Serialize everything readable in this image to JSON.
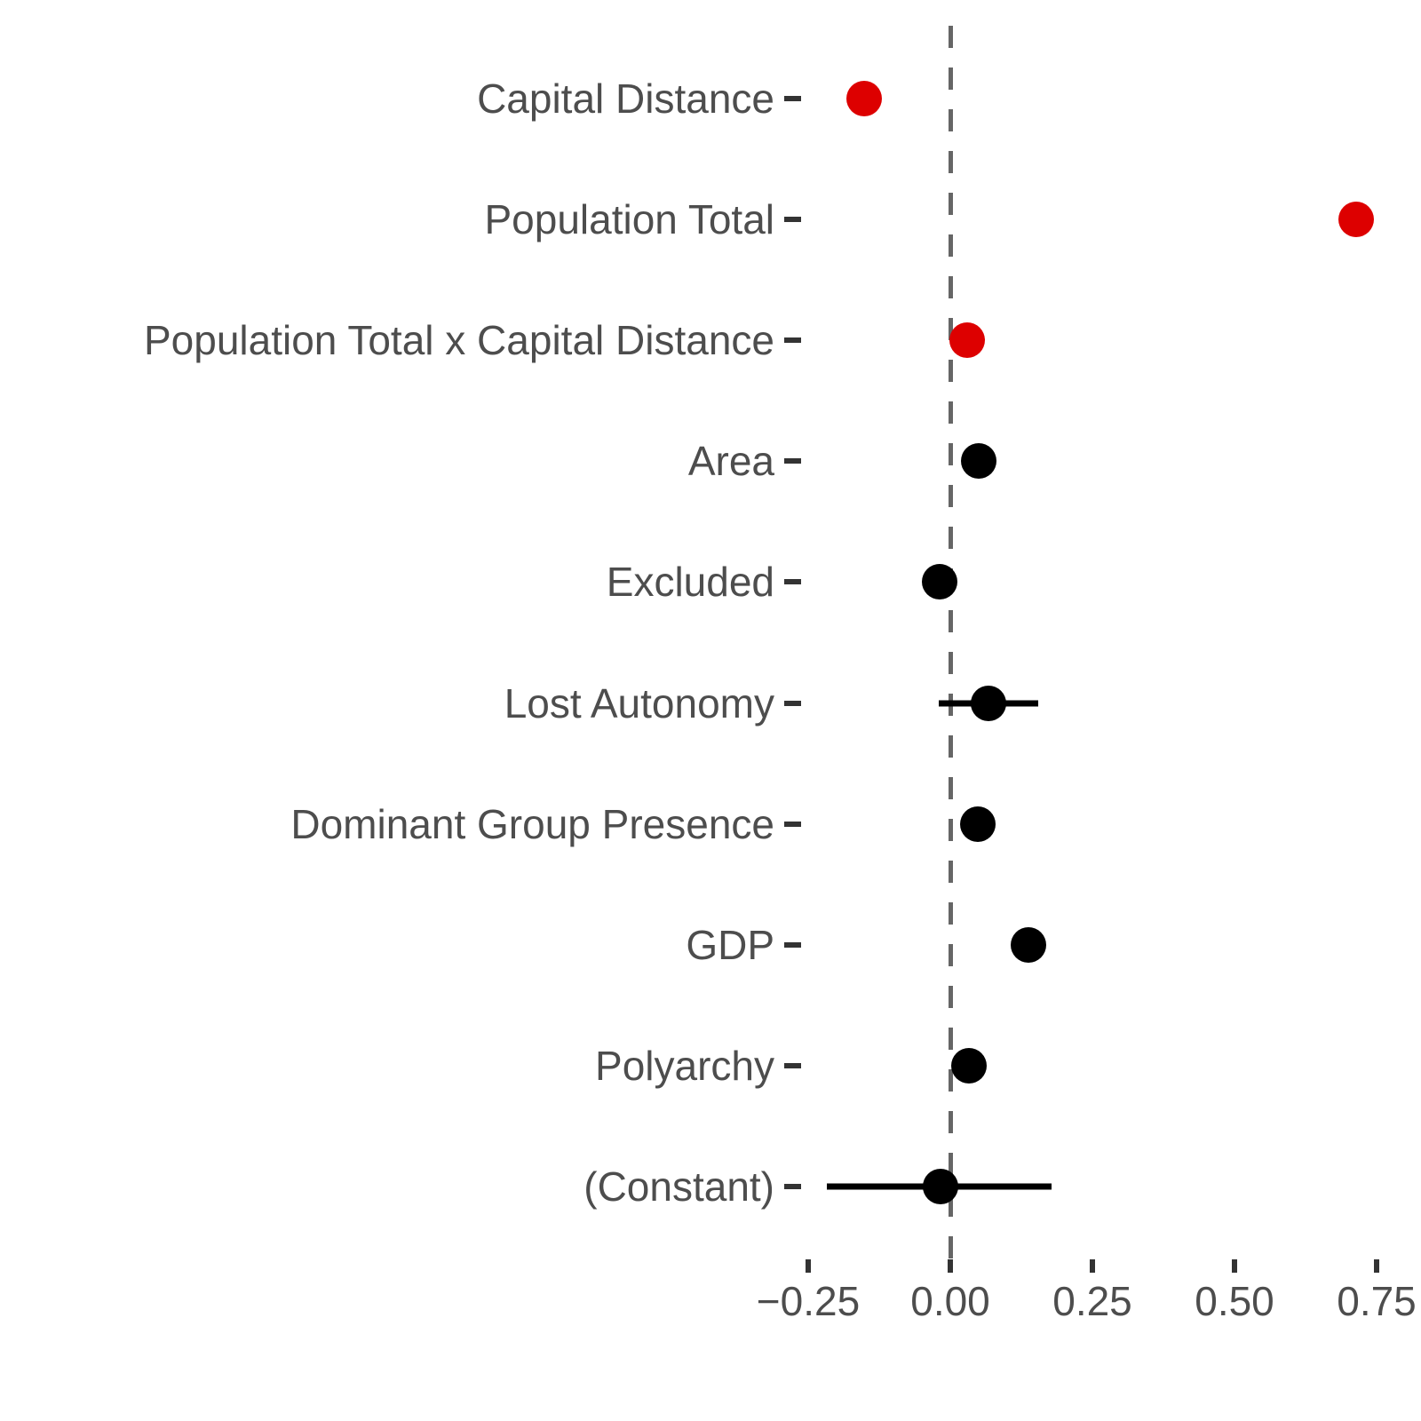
{
  "chart_data": {
    "type": "scatter",
    "subtype": "coefficient_dot_whisker_plot",
    "title": "",
    "xlabel": "",
    "ylabel": "",
    "grid": false,
    "legend": "none",
    "zero_reference_line": 0,
    "xlim": [
      -0.28,
      0.83
    ],
    "x_ticks": [
      -0.25,
      0.0,
      0.25,
      0.5,
      0.75
    ],
    "x_tick_labels": [
      "−0.25",
      "0.00",
      "0.25",
      "0.50",
      "0.75"
    ],
    "categories": [
      "Capital Distance",
      "Population Total",
      "Population Total x Capital Distance",
      "Area",
      "Excluded",
      "Lost Autonomy",
      "Dominant Group Presence",
      "GDP",
      "Polyarchy",
      "(Constant)"
    ],
    "points": [
      {
        "label": "Capital Distance",
        "estimate": -0.152,
        "ci_low": null,
        "ci_high": null,
        "significant": true,
        "color": "#dd0000"
      },
      {
        "label": "Population Total",
        "estimate": 0.714,
        "ci_low": null,
        "ci_high": null,
        "significant": true,
        "color": "#dd0000"
      },
      {
        "label": "Population Total x Capital Distance",
        "estimate": 0.03,
        "ci_low": null,
        "ci_high": null,
        "significant": true,
        "color": "#dd0000"
      },
      {
        "label": "Area",
        "estimate": 0.05,
        "ci_low": null,
        "ci_high": null,
        "significant": false,
        "color": "#000000"
      },
      {
        "label": "Excluded",
        "estimate": -0.019,
        "ci_low": null,
        "ci_high": null,
        "significant": false,
        "color": "#000000"
      },
      {
        "label": "Lost Autonomy",
        "estimate": 0.067,
        "ci_low": -0.02,
        "ci_high": 0.155,
        "significant": false,
        "color": "#000000"
      },
      {
        "label": "Dominant Group Presence",
        "estimate": 0.048,
        "ci_low": null,
        "ci_high": null,
        "significant": false,
        "color": "#000000"
      },
      {
        "label": "GDP",
        "estimate": 0.137,
        "ci_low": null,
        "ci_high": null,
        "significant": false,
        "color": "#000000"
      },
      {
        "label": "Polyarchy",
        "estimate": 0.033,
        "ci_low": null,
        "ci_high": null,
        "significant": false,
        "color": "#000000"
      },
      {
        "label": "(Constant)",
        "estimate": -0.017,
        "ci_low": -0.217,
        "ci_high": 0.178,
        "significant": false,
        "color": "#000000"
      }
    ],
    "colors": {
      "significant_point": "#dd0000",
      "default_point": "#000000",
      "zero_line": "#666666",
      "axis_text": "#4d4d4d",
      "tick_mark": "#333333",
      "background": "#ffffff"
    }
  }
}
